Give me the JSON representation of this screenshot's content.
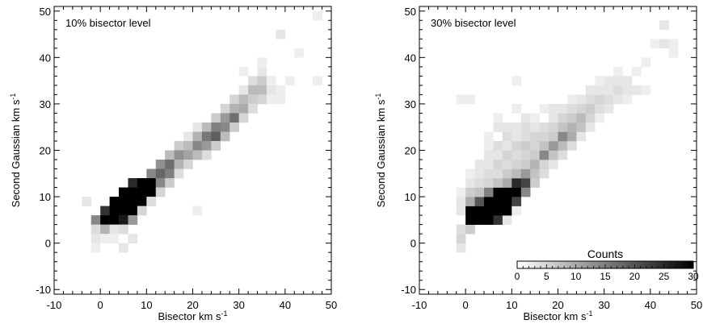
{
  "chart_data": [
    {
      "type": "heatmap",
      "annotation": "10% bisector level",
      "xlabel": "Bisector km s",
      "xlabel_sup": "-1",
      "ylabel": "Second Gaussian km s",
      "ylabel_sup": "-1",
      "xlim": [
        -10,
        50
      ],
      "ylim": [
        -11,
        51
      ],
      "x_ticks": [
        "-10",
        "0",
        "10",
        "20",
        "30",
        "40",
        "50"
      ],
      "y_ticks": [
        "-10",
        "0",
        "10",
        "20",
        "30",
        "40",
        "50"
      ],
      "bin_size": 2,
      "cells": [
        [
          -4,
          8,
          3
        ],
        [
          -2,
          4,
          14
        ],
        [
          -2,
          2,
          4
        ],
        [
          -2,
          0,
          3
        ],
        [
          -2,
          -2,
          2
        ],
        [
          0,
          6,
          24
        ],
        [
          0,
          4,
          30
        ],
        [
          0,
          2,
          9
        ],
        [
          0,
          0,
          2
        ],
        [
          2,
          8,
          30
        ],
        [
          2,
          6,
          30
        ],
        [
          2,
          4,
          30
        ],
        [
          2,
          2,
          3
        ],
        [
          2,
          0,
          2
        ],
        [
          4,
          10,
          30
        ],
        [
          4,
          8,
          30
        ],
        [
          4,
          6,
          30
        ],
        [
          4,
          4,
          27
        ],
        [
          4,
          2,
          4
        ],
        [
          4,
          -2,
          3
        ],
        [
          6,
          12,
          25
        ],
        [
          6,
          10,
          30
        ],
        [
          6,
          8,
          30
        ],
        [
          6,
          6,
          30
        ],
        [
          6,
          4,
          12
        ],
        [
          6,
          0,
          3
        ],
        [
          8,
          12,
          30
        ],
        [
          8,
          10,
          30
        ],
        [
          8,
          8,
          30
        ],
        [
          8,
          6,
          5
        ],
        [
          10,
          14,
          14
        ],
        [
          10,
          12,
          30
        ],
        [
          10,
          10,
          30
        ],
        [
          10,
          8,
          4
        ],
        [
          12,
          16,
          13
        ],
        [
          12,
          14,
          18
        ],
        [
          12,
          12,
          14
        ],
        [
          12,
          10,
          5
        ],
        [
          14,
          18,
          8
        ],
        [
          14,
          16,
          17
        ],
        [
          14,
          14,
          15
        ],
        [
          14,
          12,
          6
        ],
        [
          16,
          20,
          6
        ],
        [
          16,
          18,
          13
        ],
        [
          16,
          16,
          9
        ],
        [
          16,
          14,
          4
        ],
        [
          18,
          22,
          3
        ],
        [
          18,
          20,
          8
        ],
        [
          18,
          18,
          11
        ],
        [
          18,
          16,
          5
        ],
        [
          20,
          24,
          3
        ],
        [
          20,
          22,
          9
        ],
        [
          20,
          20,
          14
        ],
        [
          20,
          18,
          8
        ],
        [
          20,
          6,
          2
        ],
        [
          22,
          24,
          8
        ],
        [
          22,
          22,
          16
        ],
        [
          22,
          20,
          12
        ],
        [
          22,
          18,
          4
        ],
        [
          24,
          26,
          6
        ],
        [
          24,
          24,
          15
        ],
        [
          24,
          22,
          19
        ],
        [
          24,
          20,
          6
        ],
        [
          26,
          28,
          5
        ],
        [
          26,
          26,
          12
        ],
        [
          26,
          24,
          14
        ],
        [
          26,
          22,
          8
        ],
        [
          28,
          30,
          5
        ],
        [
          28,
          28,
          9
        ],
        [
          28,
          26,
          17
        ],
        [
          28,
          24,
          6
        ],
        [
          30,
          32,
          3
        ],
        [
          30,
          30,
          8
        ],
        [
          30,
          28,
          10
        ],
        [
          30,
          26,
          5
        ],
        [
          30,
          36,
          2
        ],
        [
          32,
          34,
          4
        ],
        [
          32,
          32,
          8
        ],
        [
          32,
          30,
          6
        ],
        [
          32,
          28,
          4
        ],
        [
          34,
          36,
          3
        ],
        [
          34,
          34,
          6
        ],
        [
          34,
          32,
          8
        ],
        [
          34,
          30,
          5
        ],
        [
          34,
          38,
          2
        ],
        [
          36,
          30,
          2
        ],
        [
          36,
          34,
          2
        ],
        [
          36,
          32,
          3
        ],
        [
          38,
          30,
          2
        ],
        [
          38,
          32,
          2
        ],
        [
          38,
          44,
          3
        ],
        [
          40,
          34,
          2
        ],
        [
          42,
          40,
          2
        ],
        [
          46,
          34,
          2
        ],
        [
          46,
          48,
          2
        ]
      ]
    },
    {
      "type": "heatmap",
      "annotation": "30% bisector level",
      "xlabel": "Bisector km s",
      "xlabel_sup": "-1",
      "ylabel": "Second Gaussian km s",
      "ylabel_sup": "-1",
      "xlim": [
        -10,
        50
      ],
      "ylim": [
        -11,
        51
      ],
      "x_ticks": [
        "-10",
        "0",
        "10",
        "20",
        "30",
        "40",
        "50"
      ],
      "y_ticks": [
        "-10",
        "0",
        "10",
        "20",
        "30",
        "40",
        "50"
      ],
      "bin_size": 2,
      "colorbar": {
        "label": "Counts",
        "min": 0,
        "max": 30,
        "ticks": [
          "0",
          "5",
          "10",
          "15",
          "20",
          "25",
          "30"
        ]
      },
      "cells": [
        [
          -2,
          -2,
          3
        ],
        [
          -2,
          0,
          5
        ],
        [
          -2,
          2,
          4
        ],
        [
          -2,
          6,
          3
        ],
        [
          -2,
          8,
          3
        ],
        [
          -2,
          10,
          2
        ],
        [
          -2,
          30,
          2
        ],
        [
          0,
          2,
          6
        ],
        [
          0,
          4,
          30
        ],
        [
          0,
          6,
          30
        ],
        [
          0,
          8,
          10
        ],
        [
          0,
          10,
          6
        ],
        [
          0,
          12,
          3
        ],
        [
          0,
          14,
          2
        ],
        [
          0,
          30,
          2
        ],
        [
          2,
          4,
          30
        ],
        [
          2,
          6,
          30
        ],
        [
          2,
          8,
          20
        ],
        [
          2,
          10,
          7
        ],
        [
          2,
          12,
          4
        ],
        [
          2,
          14,
          3
        ],
        [
          2,
          16,
          3
        ],
        [
          4,
          4,
          30
        ],
        [
          4,
          6,
          30
        ],
        [
          4,
          8,
          30
        ],
        [
          4,
          10,
          15
        ],
        [
          4,
          12,
          5
        ],
        [
          4,
          14,
          4
        ],
        [
          4,
          16,
          3
        ],
        [
          4,
          18,
          3
        ],
        [
          4,
          20,
          2
        ],
        [
          4,
          22,
          2
        ],
        [
          6,
          4,
          24
        ],
        [
          6,
          6,
          30
        ],
        [
          6,
          8,
          30
        ],
        [
          6,
          10,
          30
        ],
        [
          6,
          12,
          7
        ],
        [
          6,
          14,
          4
        ],
        [
          6,
          16,
          5
        ],
        [
          6,
          18,
          3
        ],
        [
          6,
          20,
          4
        ],
        [
          6,
          24,
          3
        ],
        [
          6,
          26,
          2
        ],
        [
          8,
          4,
          3
        ],
        [
          8,
          6,
          30
        ],
        [
          8,
          8,
          30
        ],
        [
          8,
          10,
          30
        ],
        [
          8,
          12,
          10
        ],
        [
          8,
          14,
          6
        ],
        [
          8,
          16,
          4
        ],
        [
          8,
          18,
          5
        ],
        [
          8,
          20,
          3
        ],
        [
          8,
          22,
          4
        ],
        [
          8,
          24,
          3
        ],
        [
          10,
          6,
          2
        ],
        [
          10,
          8,
          22
        ],
        [
          10,
          10,
          30
        ],
        [
          10,
          12,
          25
        ],
        [
          10,
          14,
          8
        ],
        [
          10,
          16,
          5
        ],
        [
          10,
          18,
          4
        ],
        [
          10,
          20,
          5
        ],
        [
          10,
          22,
          3
        ],
        [
          10,
          24,
          3
        ],
        [
          10,
          28,
          2
        ],
        [
          10,
          34,
          2
        ],
        [
          12,
          10,
          14
        ],
        [
          12,
          12,
          22
        ],
        [
          12,
          14,
          12
        ],
        [
          12,
          16,
          6
        ],
        [
          12,
          18,
          5
        ],
        [
          12,
          20,
          6
        ],
        [
          12,
          22,
          4
        ],
        [
          12,
          24,
          4
        ],
        [
          12,
          26,
          3
        ],
        [
          14,
          12,
          6
        ],
        [
          14,
          14,
          7
        ],
        [
          14,
          16,
          9
        ],
        [
          14,
          18,
          6
        ],
        [
          14,
          20,
          5
        ],
        [
          14,
          22,
          5
        ],
        [
          14,
          24,
          3
        ],
        [
          14,
          26,
          2
        ],
        [
          16,
          14,
          4
        ],
        [
          16,
          16,
          5
        ],
        [
          16,
          18,
          14
        ],
        [
          16,
          20,
          7
        ],
        [
          16,
          22,
          5
        ],
        [
          16,
          24,
          4
        ],
        [
          16,
          28,
          2
        ],
        [
          18,
          16,
          3
        ],
        [
          18,
          18,
          7
        ],
        [
          18,
          20,
          12
        ],
        [
          18,
          22,
          6
        ],
        [
          18,
          24,
          5
        ],
        [
          18,
          26,
          3
        ],
        [
          18,
          28,
          3
        ],
        [
          20,
          18,
          4
        ],
        [
          20,
          20,
          8
        ],
        [
          20,
          22,
          14
        ],
        [
          20,
          24,
          7
        ],
        [
          20,
          26,
          5
        ],
        [
          20,
          28,
          3
        ],
        [
          22,
          20,
          4
        ],
        [
          22,
          22,
          10
        ],
        [
          22,
          24,
          9
        ],
        [
          22,
          26,
          6
        ],
        [
          22,
          28,
          4
        ],
        [
          22,
          30,
          2
        ],
        [
          24,
          22,
          3
        ],
        [
          24,
          24,
          7
        ],
        [
          24,
          26,
          8
        ],
        [
          24,
          28,
          5
        ],
        [
          24,
          30,
          3
        ],
        [
          26,
          24,
          3
        ],
        [
          26,
          26,
          5
        ],
        [
          26,
          28,
          6
        ],
        [
          26,
          30,
          4
        ],
        [
          26,
          32,
          3
        ],
        [
          28,
          26,
          2
        ],
        [
          28,
          28,
          4
        ],
        [
          28,
          30,
          5
        ],
        [
          28,
          32,
          3
        ],
        [
          28,
          34,
          2
        ],
        [
          30,
          28,
          3
        ],
        [
          30,
          30,
          4
        ],
        [
          30,
          32,
          3
        ],
        [
          30,
          34,
          3
        ],
        [
          32,
          30,
          3
        ],
        [
          32,
          32,
          4
        ],
        [
          32,
          34,
          3
        ],
        [
          32,
          36,
          2
        ],
        [
          34,
          32,
          3
        ],
        [
          34,
          34,
          3
        ],
        [
          34,
          30,
          2
        ],
        [
          36,
          32,
          3
        ],
        [
          36,
          36,
          2
        ],
        [
          38,
          32,
          2
        ],
        [
          38,
          38,
          2
        ],
        [
          40,
          42,
          2
        ],
        [
          42,
          42,
          3
        ],
        [
          42,
          46,
          3
        ],
        [
          44,
          40,
          2
        ],
        [
          44,
          42,
          2
        ]
      ]
    }
  ]
}
